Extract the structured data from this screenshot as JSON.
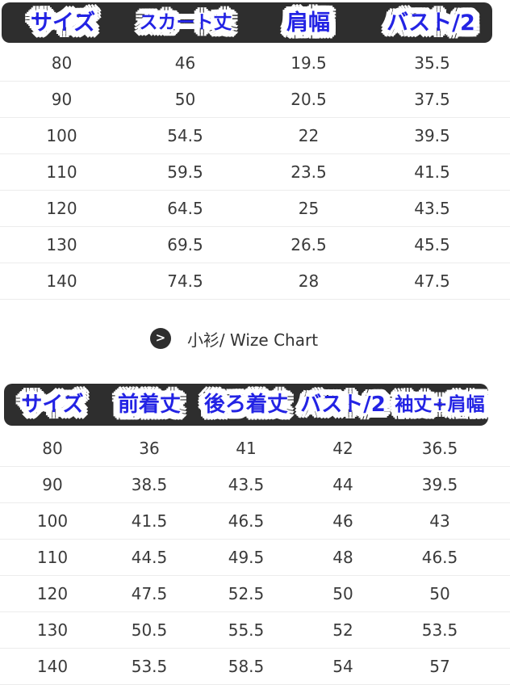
{
  "ui": {
    "section_title": "小衫/ Wize Chart",
    "section_icon": "chevron-right-icon",
    "colors": {
      "header_bar": "#2e2e2e",
      "header_text_blue": "#2323e4",
      "sticker_outline": "#ffffff",
      "cell_text": "#3a3a3a",
      "separator": "#ececec",
      "background": "#ffffff"
    }
  },
  "chart_data": [
    {
      "type": "table",
      "title": "ワンピース size chart (top table)",
      "columns": [
        "サイズ",
        "スカート丈",
        "肩幅",
        "バスト/2"
      ],
      "rows": [
        [
          80,
          46,
          19.5,
          35.5
        ],
        [
          90,
          50,
          20.5,
          37.5
        ],
        [
          100,
          54.5,
          22,
          39.5
        ],
        [
          110,
          59.5,
          23.5,
          41.5
        ],
        [
          120,
          64.5,
          25,
          43.5
        ],
        [
          130,
          69.5,
          26.5,
          45.5
        ],
        [
          140,
          74.5,
          28,
          47.5
        ]
      ]
    },
    {
      "type": "table",
      "title": "小衫/ Wize Chart (bottom table)",
      "columns": [
        "サイズ",
        "前着丈",
        "後ろ着丈",
        "バスト/2",
        "袖丈+肩幅"
      ],
      "rows": [
        [
          80,
          36,
          41,
          42,
          36.5
        ],
        [
          90,
          38.5,
          43.5,
          44,
          39.5
        ],
        [
          100,
          41.5,
          46.5,
          46,
          43
        ],
        [
          110,
          44.5,
          49.5,
          48,
          46.5
        ],
        [
          120,
          47.5,
          52.5,
          50,
          50
        ],
        [
          130,
          50.5,
          55.5,
          52,
          53.5
        ],
        [
          140,
          53.5,
          58.5,
          54,
          57
        ]
      ]
    }
  ]
}
